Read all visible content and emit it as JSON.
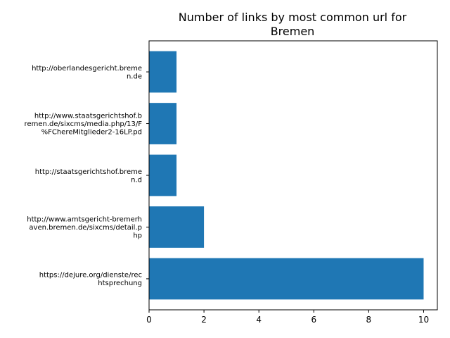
{
  "chart_data": {
    "type": "bar",
    "orientation": "horizontal",
    "title": [
      "Number of links by most common url for",
      "Bremen"
    ],
    "xlabel": "",
    "ylabel": "",
    "categories": [
      [
        "https://dejure.org/dienste/rec",
        "htsprechung"
      ],
      [
        "http://www.amtsgericht-bremerh",
        "aven.bremen.de/sixcms/detail.p",
        "hp"
      ],
      [
        "http://staatsgerichtshof.breme",
        "n.d"
      ],
      [
        "http://www.staatsgerichtshof.b",
        "remen.de/sixcms/media.php/13/F",
        "%FChereMitglieder2-16LP.pd"
      ],
      [
        "http://oberlandesgericht.breme",
        "n.de"
      ]
    ],
    "values": [
      10,
      2,
      1,
      1,
      1
    ],
    "xlim": [
      0,
      10.5
    ],
    "xticks": [
      "0",
      "2",
      "4",
      "6",
      "8",
      "10"
    ],
    "bar_color": "#1f77b4",
    "grid": false
  }
}
